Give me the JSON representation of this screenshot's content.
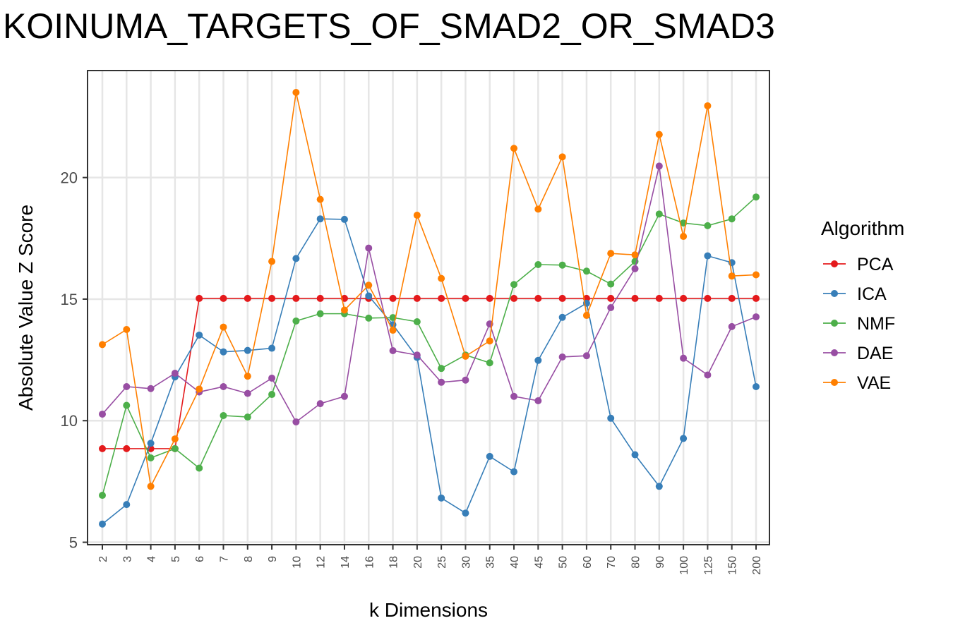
{
  "chart_data": {
    "type": "line",
    "title": "KOINUMA_TARGETS_OF_SMAD2_OR_SMAD3",
    "xlabel": "k Dimensions",
    "ylabel": "Absolute Value Z Score",
    "legend_title": "Algorithm",
    "legend_position": "right",
    "grid": true,
    "ylim": [
      4.9,
      24.4
    ],
    "yticks": [
      5,
      10,
      15,
      20
    ],
    "categories": [
      "2",
      "3",
      "4",
      "5",
      "6",
      "7",
      "8",
      "9",
      "10",
      "12",
      "14",
      "16",
      "18",
      "20",
      "25",
      "30",
      "35",
      "40",
      "45",
      "50",
      "60",
      "70",
      "80",
      "90",
      "100",
      "125",
      "150",
      "200"
    ],
    "series": [
      {
        "name": "PCA",
        "color": "#E41A1C",
        "values": [
          8.85,
          8.85,
          8.85,
          8.85,
          15.03,
          15.03,
          15.03,
          15.03,
          15.03,
          15.03,
          15.03,
          15.03,
          15.03,
          15.03,
          15.03,
          15.03,
          15.03,
          15.03,
          15.03,
          15.03,
          15.03,
          15.03,
          15.03,
          15.03,
          15.03,
          15.03,
          15.03,
          15.03
        ]
      },
      {
        "name": "ICA",
        "color": "#377EB8",
        "values": [
          5.75,
          6.55,
          9.07,
          11.8,
          13.52,
          12.83,
          12.89,
          12.98,
          16.67,
          18.3,
          18.28,
          15.13,
          13.95,
          12.6,
          6.82,
          6.2,
          8.53,
          7.9,
          12.48,
          14.25,
          14.83,
          10.1,
          8.6,
          7.3,
          9.27,
          16.78,
          16.5,
          11.4
        ]
      },
      {
        "name": "NMF",
        "color": "#4DAF4A",
        "values": [
          6.93,
          10.63,
          8.47,
          8.85,
          8.05,
          10.21,
          10.15,
          11.08,
          14.1,
          14.4,
          14.4,
          14.22,
          14.24,
          14.07,
          12.15,
          12.7,
          12.38,
          15.6,
          16.42,
          16.4,
          16.15,
          15.62,
          16.55,
          18.5,
          18.13,
          18.02,
          18.3,
          19.2
        ]
      },
      {
        "name": "DAE",
        "color": "#984EA3",
        "values": [
          10.27,
          11.4,
          11.32,
          11.95,
          11.18,
          11.4,
          11.12,
          11.75,
          9.95,
          10.7,
          11.0,
          17.1,
          12.88,
          12.7,
          11.58,
          11.67,
          13.98,
          11.0,
          10.82,
          12.62,
          12.67,
          14.65,
          16.25,
          20.47,
          12.57,
          11.88,
          13.87,
          14.27
        ]
      },
      {
        "name": "VAE",
        "color": "#FF7F00",
        "values": [
          13.13,
          13.75,
          7.3,
          9.25,
          11.3,
          13.85,
          11.83,
          16.55,
          23.5,
          19.1,
          14.55,
          15.57,
          13.72,
          18.45,
          15.85,
          12.65,
          13.28,
          21.2,
          18.7,
          20.85,
          14.33,
          16.88,
          16.82,
          21.77,
          17.58,
          22.95,
          15.95,
          16.0
        ]
      }
    ]
  }
}
